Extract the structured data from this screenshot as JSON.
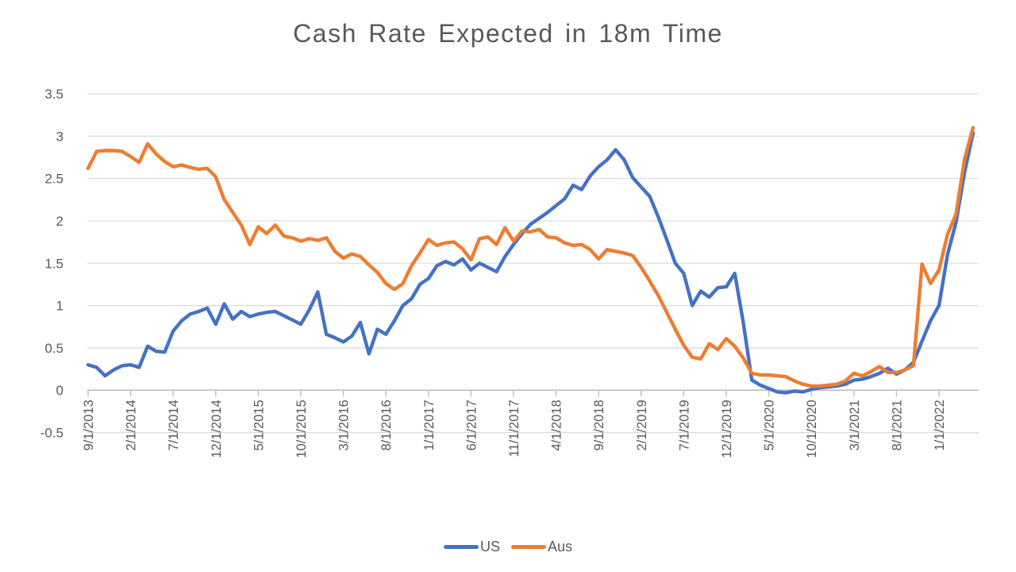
{
  "chart_data": {
    "type": "line",
    "title": "Cash Rate Expected in 18m Time",
    "xlabel": "",
    "ylabel": "",
    "x_monthly_start": "9/1/2013",
    "x_tick_interval_months": 5,
    "x_tick_labels": [
      "9/1/2013",
      "2/1/2014",
      "7/1/2014",
      "12/1/2014",
      "5/1/2015",
      "10/1/2015",
      "3/1/2016",
      "8/1/2016",
      "1/1/2017",
      "6/1/2017",
      "11/1/2017",
      "4/1/2018",
      "9/1/2018",
      "2/1/2019",
      "7/1/2019",
      "12/1/2019",
      "5/1/2020",
      "10/1/2020",
      "3/1/2021",
      "8/1/2021",
      "1/1/2022"
    ],
    "y_tick_labels": [
      "3.5",
      "3",
      "2.5",
      "2",
      "1.5",
      "1",
      "0.5",
      "0",
      "-0.5"
    ],
    "y_ticks": [
      3.5,
      3,
      2.5,
      2,
      1.5,
      1,
      0.5,
      0,
      -0.5
    ],
    "ylim": [
      -0.5,
      3.5
    ],
    "grid": true,
    "legend_position": "bottom",
    "colors": {
      "grid": "#d9d9d9",
      "axis": "#bfbfbf",
      "text": "#595959",
      "background": "#ffffff"
    },
    "series": [
      {
        "name": "US",
        "color": "#4472C4",
        "values": [
          0.3,
          0.27,
          0.17,
          0.24,
          0.29,
          0.3,
          0.27,
          0.52,
          0.46,
          0.45,
          0.7,
          0.82,
          0.9,
          0.93,
          0.97,
          0.78,
          1.02,
          0.84,
          0.93,
          0.87,
          0.9,
          0.92,
          0.93,
          0.88,
          0.83,
          0.78,
          0.95,
          1.16,
          0.66,
          0.62,
          0.57,
          0.64,
          0.8,
          0.43,
          0.72,
          0.66,
          0.82,
          1.0,
          1.08,
          1.25,
          1.32,
          1.47,
          1.52,
          1.48,
          1.55,
          1.42,
          1.5,
          1.45,
          1.4,
          1.58,
          1.72,
          1.85,
          1.96,
          2.03,
          2.1,
          2.18,
          2.26,
          2.42,
          2.37,
          2.53,
          2.64,
          2.72,
          2.84,
          2.72,
          2.51,
          2.4,
          2.29,
          2.05,
          1.78,
          1.5,
          1.38,
          1.0,
          1.17,
          1.1,
          1.21,
          1.22,
          1.38,
          0.8,
          0.12,
          0.06,
          0.02,
          -0.02,
          -0.03,
          -0.01,
          -0.02,
          0.01,
          0.03,
          0.04,
          0.05,
          0.07,
          0.12,
          0.13,
          0.16,
          0.2,
          0.26,
          0.19,
          0.24,
          0.33,
          0.58,
          0.82,
          1.0,
          1.6,
          1.98,
          2.57,
          3.04
        ]
      },
      {
        "name": "Aus",
        "color": "#ED7D31",
        "values": [
          2.62,
          2.82,
          2.83,
          2.83,
          2.82,
          2.76,
          2.69,
          2.91,
          2.79,
          2.7,
          2.64,
          2.66,
          2.63,
          2.61,
          2.62,
          2.52,
          2.25,
          2.1,
          1.95,
          1.72,
          1.93,
          1.85,
          1.95,
          1.82,
          1.8,
          1.76,
          1.79,
          1.77,
          1.8,
          1.64,
          1.56,
          1.61,
          1.58,
          1.48,
          1.39,
          1.26,
          1.19,
          1.26,
          1.47,
          1.62,
          1.78,
          1.71,
          1.74,
          1.75,
          1.67,
          1.54,
          1.79,
          1.81,
          1.72,
          1.92,
          1.76,
          1.88,
          1.87,
          1.9,
          1.81,
          1.8,
          1.74,
          1.71,
          1.72,
          1.66,
          1.55,
          1.66,
          1.64,
          1.62,
          1.59,
          1.45,
          1.29,
          1.12,
          0.92,
          0.72,
          0.53,
          0.39,
          0.37,
          0.55,
          0.48,
          0.61,
          0.52,
          0.38,
          0.2,
          0.18,
          0.18,
          0.17,
          0.16,
          0.11,
          0.07,
          0.05,
          0.05,
          0.06,
          0.07,
          0.11,
          0.2,
          0.17,
          0.22,
          0.28,
          0.21,
          0.21,
          0.24,
          0.29,
          1.49,
          1.26,
          1.42,
          1.84,
          2.08,
          2.73,
          3.1
        ]
      }
    ]
  }
}
